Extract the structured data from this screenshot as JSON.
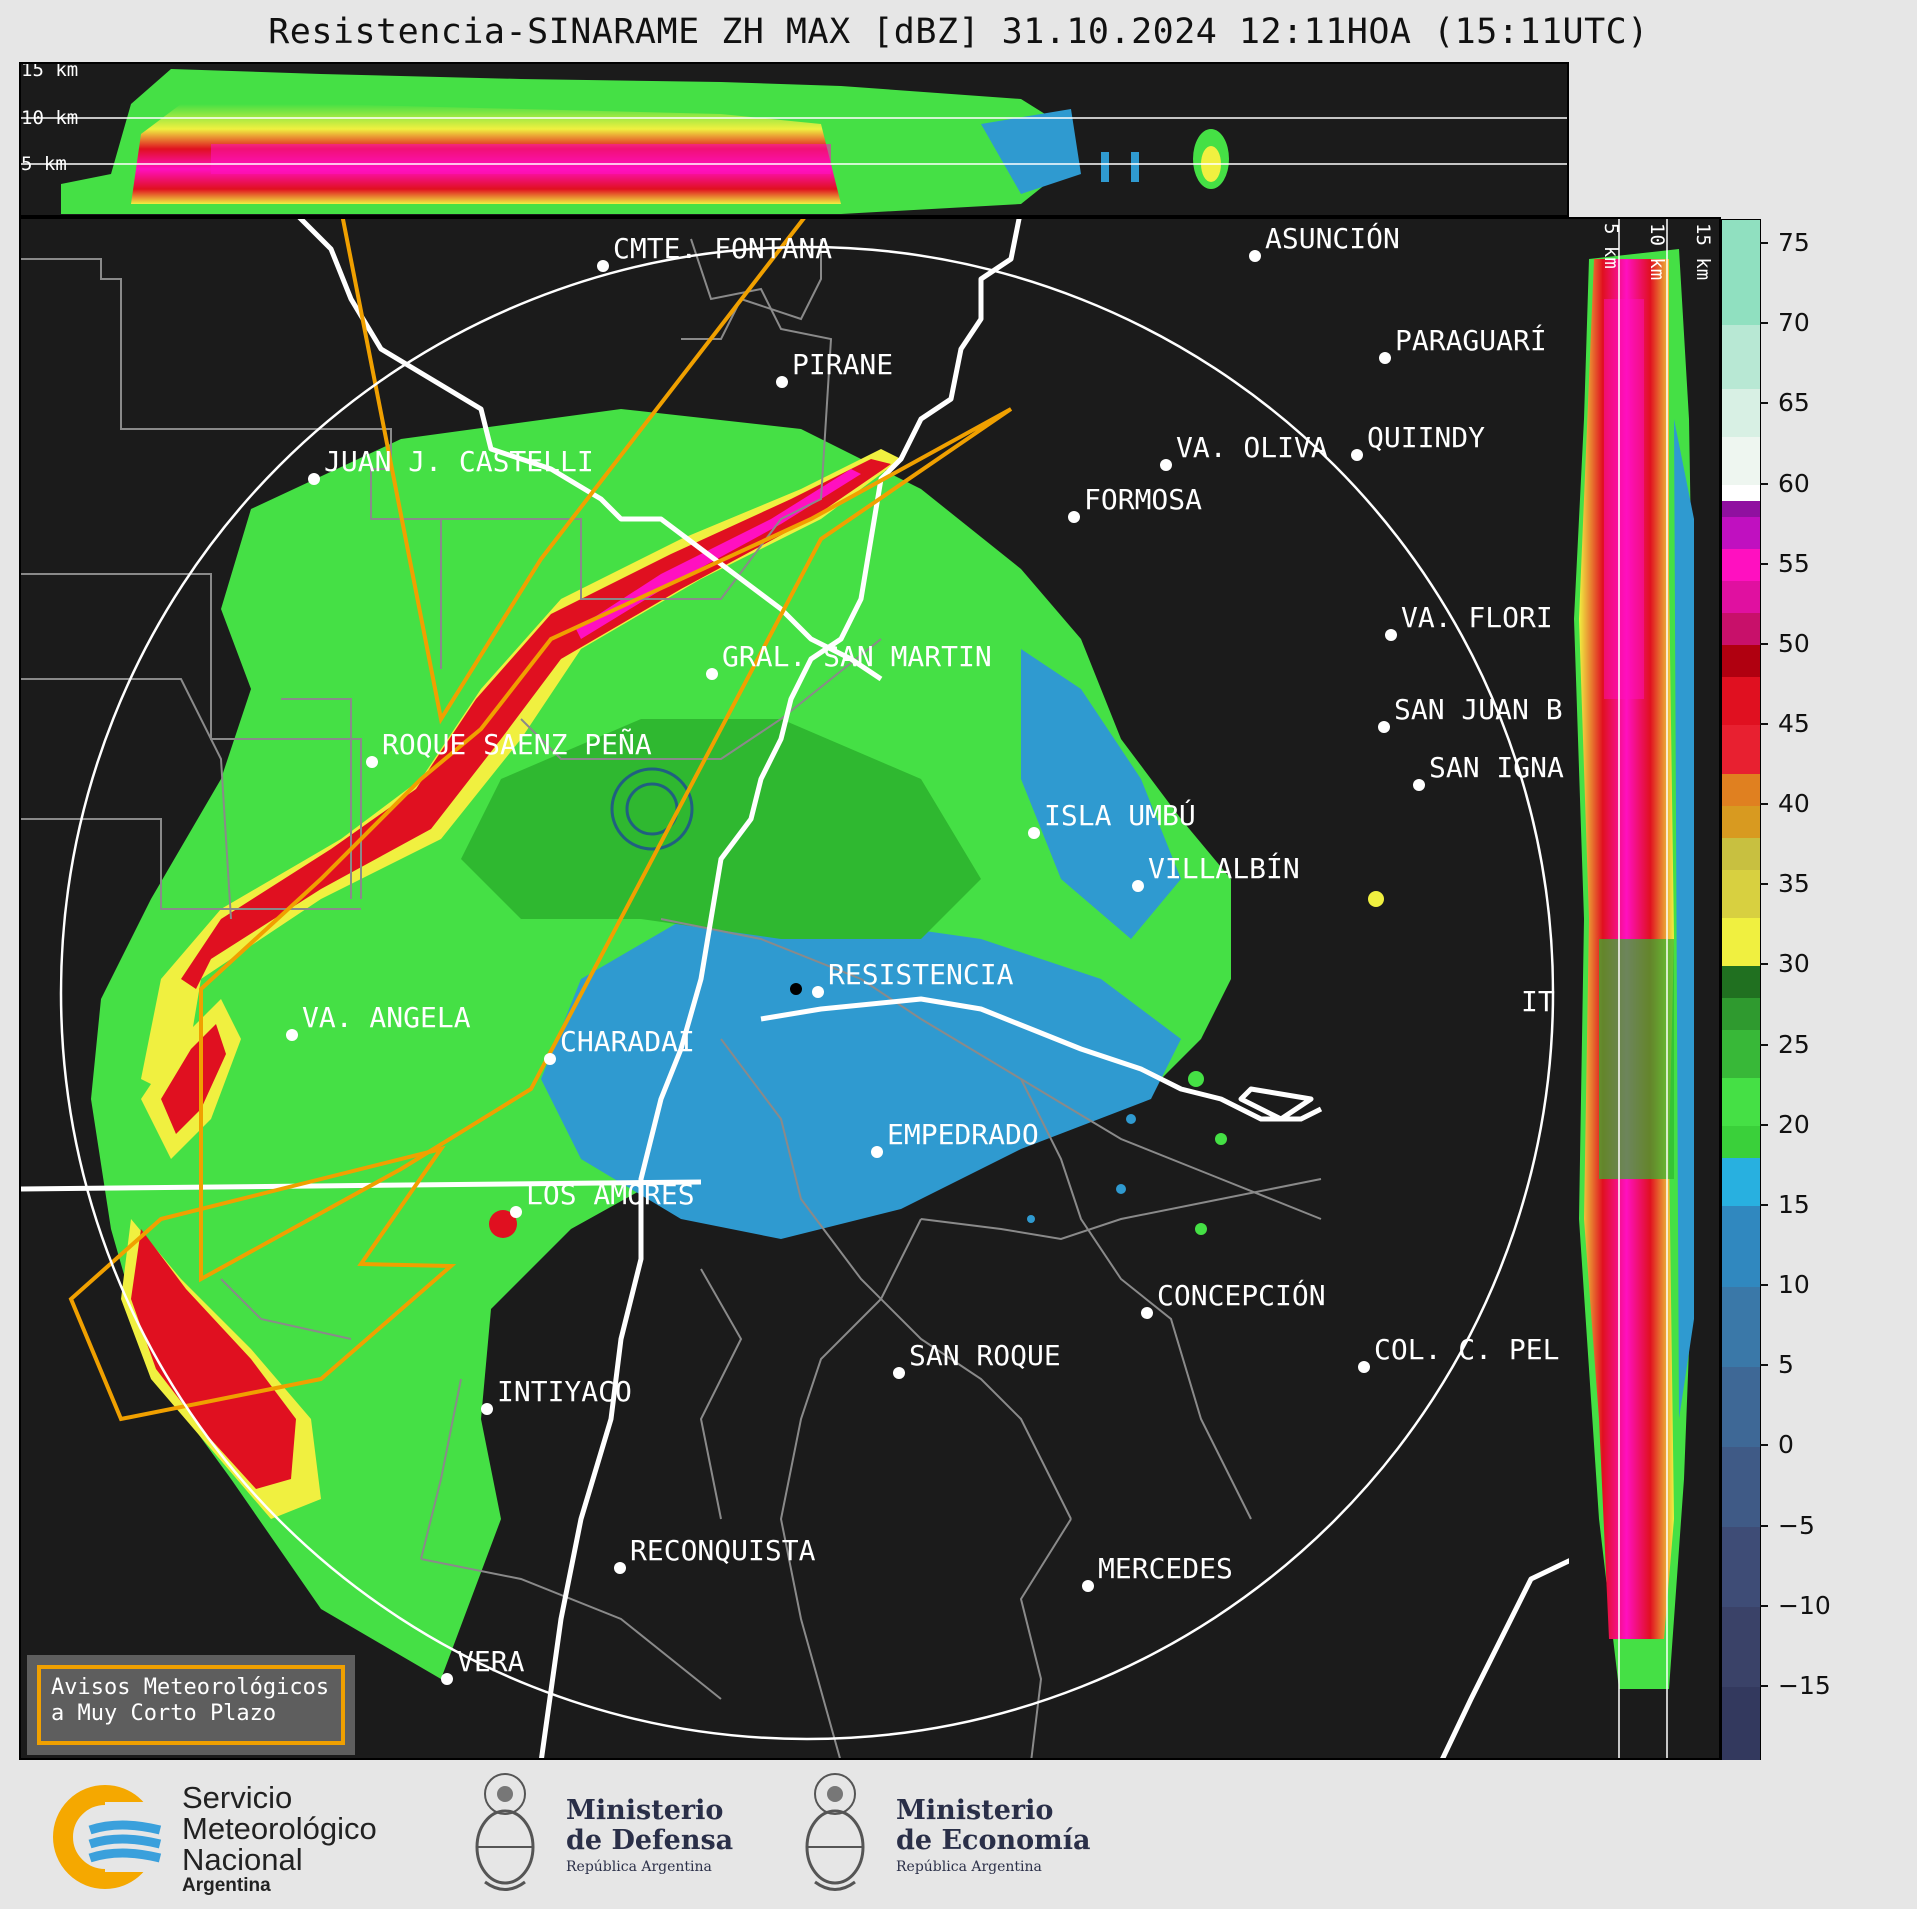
{
  "title": "Resistencia-SINARAME ZH MAX [dBZ] 31.10.2024 12:11HOA (15:11UTC)",
  "top_panel": {
    "height_labels": [
      "15 km",
      "10 km",
      "5 km"
    ]
  },
  "right_panel": {
    "height_labels": [
      "5 km",
      "10 km",
      "15 km"
    ]
  },
  "colorbar": {
    "unit": "dBZ",
    "ticks": [
      "75",
      "70",
      "65",
      "60",
      "55",
      "50",
      "45",
      "40",
      "35",
      "30",
      "25",
      "20",
      "15",
      "10",
      "5",
      "0",
      "−5",
      "−10",
      "−15"
    ],
    "range": [
      -19.5,
      76.5
    ],
    "colors": {
      "very_low": "#3a3f6b",
      "low": "#4a6a9a",
      "blue": "#2f9ad0",
      "light_blue": "#28b0e0",
      "green": "#45e045",
      "dark_green": "#207020",
      "yellow": "#f0f040",
      "olive": "#c8c040",
      "orange": "#e08020",
      "red": "#e01020",
      "dark_red": "#b00010",
      "magenta": "#ff10c0",
      "purple": "#9010a0",
      "white": "#ffffff",
      "mint": "#90e0c0"
    }
  },
  "places": [
    {
      "name": "CMTE. FONTANA"
    },
    {
      "name": "ASUNCIÓN"
    },
    {
      "name": "PARAGUARÍ"
    },
    {
      "name": "PIRANE"
    },
    {
      "name": "JUAN J. CASTELLI"
    },
    {
      "name": "QUIINDY"
    },
    {
      "name": "VA. OLIVA"
    },
    {
      "name": "FORMOSA"
    },
    {
      "name": "VA. FLORI"
    },
    {
      "name": "GRAL. SAN MARTIN"
    },
    {
      "name": "SAN JUAN B"
    },
    {
      "name": "ROQUE SAENZ PEÑA"
    },
    {
      "name": "SAN IGNA"
    },
    {
      "name": "ISLA UMBÚ"
    },
    {
      "name": "VILLALBÍN"
    },
    {
      "name": "RESISTENCIA"
    },
    {
      "name": "VA. ANGELA"
    },
    {
      "name": "CHARADAI"
    },
    {
      "name": "IT"
    },
    {
      "name": "EMPEDRADO"
    },
    {
      "name": "LOS AMORES"
    },
    {
      "name": "CONCEPCIÓN"
    },
    {
      "name": "SAN ROQUE"
    },
    {
      "name": "COL. C. PEL"
    },
    {
      "name": "INTIYACO"
    },
    {
      "name": "RECONQUISTA"
    },
    {
      "name": "MERCEDES"
    },
    {
      "name": "VERA"
    }
  ],
  "warning_box": {
    "line1": "Avisos Meteorológicos",
    "line2": "a Muy Corto Plazo",
    "border_color": "#f0a000"
  },
  "logos": {
    "smn": {
      "line1": "Servicio",
      "line2": "Meteorológico",
      "line3": "Nacional",
      "line4": "Argentina"
    },
    "defensa": {
      "line1": "Ministerio",
      "line2": "de Defensa",
      "line3": "República Argentina"
    },
    "economia": {
      "line1": "Ministerio",
      "line2": "de Economía",
      "line3": "República Argentina"
    }
  }
}
